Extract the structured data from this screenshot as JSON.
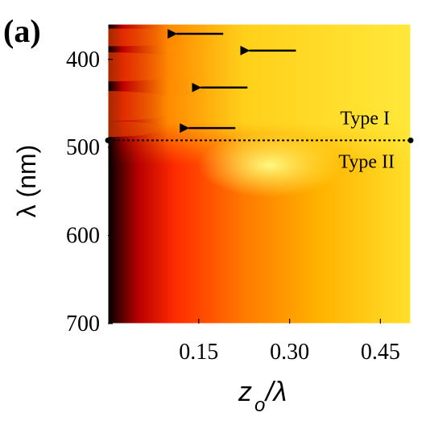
{
  "figure": {
    "panel_label": "(a)"
  },
  "chart_data": {
    "type": "heatmap",
    "ylabel": "λ (nm)",
    "xlabel_main": "z",
    "xlabel_sub": "o",
    "xlabel_tail": "/λ",
    "xlim": [
      0.0,
      0.5
    ],
    "ylim": [
      700,
      360
    ],
    "y_ticks": [
      400,
      500,
      600,
      700
    ],
    "y_tick_labels": [
      "400",
      "500",
      "600",
      "700"
    ],
    "x_ticks": [
      0.15,
      0.3,
      0.45
    ],
    "x_tick_labels": [
      "0.15",
      "0.30",
      "0.45"
    ],
    "boundary": {
      "wavelength": 492,
      "label_above": "Type I",
      "label_below": "Type II",
      "style": "dotted"
    },
    "arrows": [
      {
        "x": 0.1,
        "y": 371,
        "direction": "left"
      },
      {
        "x": 0.22,
        "y": 390,
        "direction": "left"
      },
      {
        "x": 0.14,
        "y": 432,
        "direction": "left"
      },
      {
        "x": 0.12,
        "y": 478,
        "direction": "left"
      }
    ],
    "colormap": {
      "low": "#000000",
      "mid_low": "#8b0000",
      "mid": "#ff2a00",
      "mid_high": "#ffa500",
      "high": "#ffff33"
    },
    "grid": false,
    "legend": "none"
  }
}
